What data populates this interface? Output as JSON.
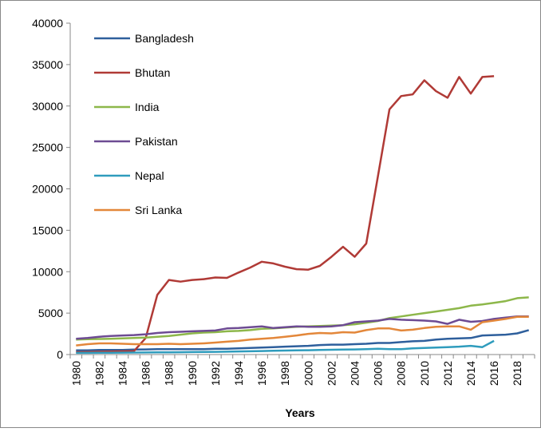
{
  "chart_data": {
    "type": "line",
    "x_label": "Years",
    "categories": [
      "1980",
      null,
      "1982",
      null,
      "1984",
      null,
      "1986",
      null,
      "1988",
      null,
      "1990",
      null,
      "1992",
      null,
      "1994",
      null,
      "1996",
      null,
      "1998",
      null,
      "2000",
      null,
      "2002",
      null,
      "2004",
      null,
      "2006",
      null,
      "2008",
      null,
      "2010",
      null,
      "2012",
      null,
      "2014",
      null,
      "2016",
      null,
      "2018",
      null
    ],
    "ylim": [
      0,
      40000
    ],
    "yticks": [
      0,
      5000,
      10000,
      15000,
      20000,
      25000,
      30000,
      35000,
      40000
    ],
    "grid": false,
    "legend": "top-left",
    "series": [
      {
        "name": "Bangladesh",
        "color": "#2e5f9c",
        "values": [
          500,
          500,
          550,
          550,
          550,
          600,
          620,
          650,
          650,
          650,
          650,
          650,
          700,
          700,
          750,
          800,
          850,
          900,
          950,
          1000,
          1050,
          1150,
          1200,
          1200,
          1250,
          1300,
          1400,
          1400,
          1500,
          1600,
          1650,
          1800,
          1900,
          1950,
          2000,
          2300,
          2350,
          2400,
          2550,
          2950
        ]
      },
      {
        "name": "Bhutan",
        "color": "#b03a36",
        "values": [
          300,
          320,
          350,
          380,
          400,
          420,
          2000,
          7200,
          9000,
          8800,
          9000,
          9100,
          9300,
          9250,
          9900,
          10500,
          11200,
          11000,
          10600,
          10300,
          10250,
          10700,
          11800,
          13000,
          11800,
          13400,
          21500,
          29600,
          31200,
          31400,
          33100,
          31800,
          31000,
          33500,
          31500,
          33500,
          33600,
          null,
          null,
          null
        ]
      },
      {
        "name": "India",
        "color": "#8db74a",
        "values": [
          1800,
          1850,
          1880,
          1900,
          1950,
          2000,
          2050,
          2150,
          2250,
          2400,
          2550,
          2650,
          2700,
          2800,
          2850,
          2950,
          3100,
          3150,
          3250,
          3350,
          3400,
          3450,
          3500,
          3550,
          3650,
          3850,
          4050,
          4400,
          4600,
          4800,
          5000,
          5200,
          5400,
          5600,
          5900,
          6050,
          6250,
          6450,
          6800,
          6900
        ]
      },
      {
        "name": "Pakistan",
        "color": "#6d4b93",
        "values": [
          1900,
          2000,
          2150,
          2250,
          2300,
          2350,
          2450,
          2600,
          2700,
          2750,
          2800,
          2850,
          2900,
          3150,
          3200,
          3300,
          3400,
          3200,
          3300,
          3400,
          3350,
          3350,
          3400,
          3550,
          3900,
          4000,
          4100,
          4300,
          4200,
          4150,
          4100,
          4000,
          3700,
          4200,
          3950,
          4050,
          4300,
          4450,
          4600,
          4600
        ]
      },
      {
        "name": "Nepal",
        "color": "#2f9cbd",
        "values": [
          200,
          200,
          220,
          220,
          230,
          240,
          250,
          260,
          270,
          280,
          300,
          320,
          330,
          350,
          380,
          400,
          420,
          450,
          480,
          500,
          520,
          550,
          580,
          600,
          620,
          650,
          700,
          650,
          650,
          750,
          800,
          850,
          900,
          950,
          1050,
          900,
          1650,
          null,
          null,
          null
        ]
      },
      {
        "name": "Sri Lanka",
        "color": "#e3873a",
        "values": [
          1100,
          1250,
          1350,
          1350,
          1300,
          1250,
          1250,
          1250,
          1300,
          1250,
          1300,
          1350,
          1450,
          1550,
          1650,
          1800,
          1900,
          2000,
          2150,
          2300,
          2500,
          2600,
          2550,
          2700,
          2650,
          2950,
          3150,
          3150,
          2900,
          3000,
          3200,
          3350,
          3400,
          3400,
          3000,
          3900,
          4100,
          4300,
          4550,
          4550
        ]
      }
    ]
  }
}
